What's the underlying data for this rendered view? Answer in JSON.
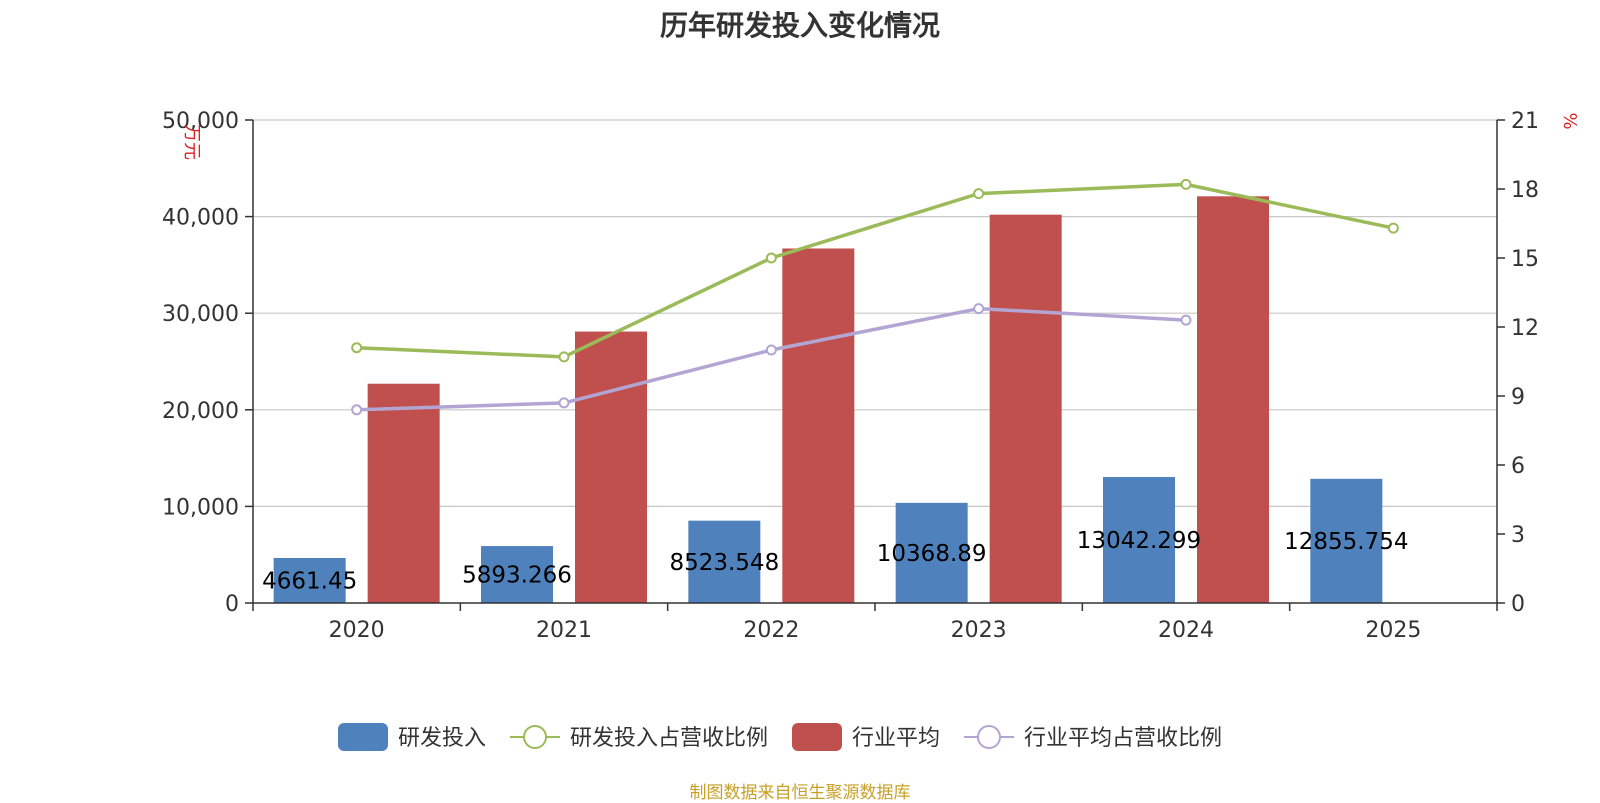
{
  "chart_data": {
    "type": "bar",
    "title": "历年研发投入变化情况",
    "categories": [
      "2020",
      "2021",
      "2022",
      "2023",
      "2024",
      "2025"
    ],
    "y_left": {
      "unit": "万元",
      "min": 0,
      "max": 50000,
      "ticks": [
        0,
        10000,
        20000,
        30000,
        40000,
        50000
      ],
      "tick_labels": [
        "0",
        "10,000",
        "20,000",
        "30,000",
        "40,000",
        "50,000"
      ]
    },
    "y_right": {
      "unit": "%",
      "min": 0,
      "max": 21,
      "ticks": [
        0,
        3,
        6,
        9,
        12,
        15,
        18,
        21
      ]
    },
    "grid": true,
    "legend_position": "bottom",
    "series": [
      {
        "name": "研发投入",
        "type": "bar",
        "axis": "left",
        "color": "#4f81bd",
        "values": [
          4661.45,
          5893.266,
          8523.548,
          10368.89,
          13042.299,
          12855.754
        ],
        "labels": [
          "4661.45",
          "5893.266",
          "8523.548",
          "10368.89",
          "13042.299",
          "12855.754"
        ]
      },
      {
        "name": "研发投入占营收比例",
        "type": "line",
        "axis": "right",
        "color": "#9bbb59",
        "values": [
          11.1,
          10.7,
          15.0,
          17.8,
          18.2,
          16.3
        ]
      },
      {
        "name": "行业平均",
        "type": "bar",
        "axis": "left",
        "color": "#c0504d",
        "values": [
          22700,
          28100,
          36700,
          40200,
          42100,
          null
        ]
      },
      {
        "name": "行业平均占营收比例",
        "type": "line",
        "axis": "right",
        "color": "#b3a5d3",
        "values": [
          8.4,
          8.7,
          11.0,
          12.8,
          12.3,
          null
        ]
      }
    ]
  },
  "source": "制图数据来自恒生聚源数据库"
}
